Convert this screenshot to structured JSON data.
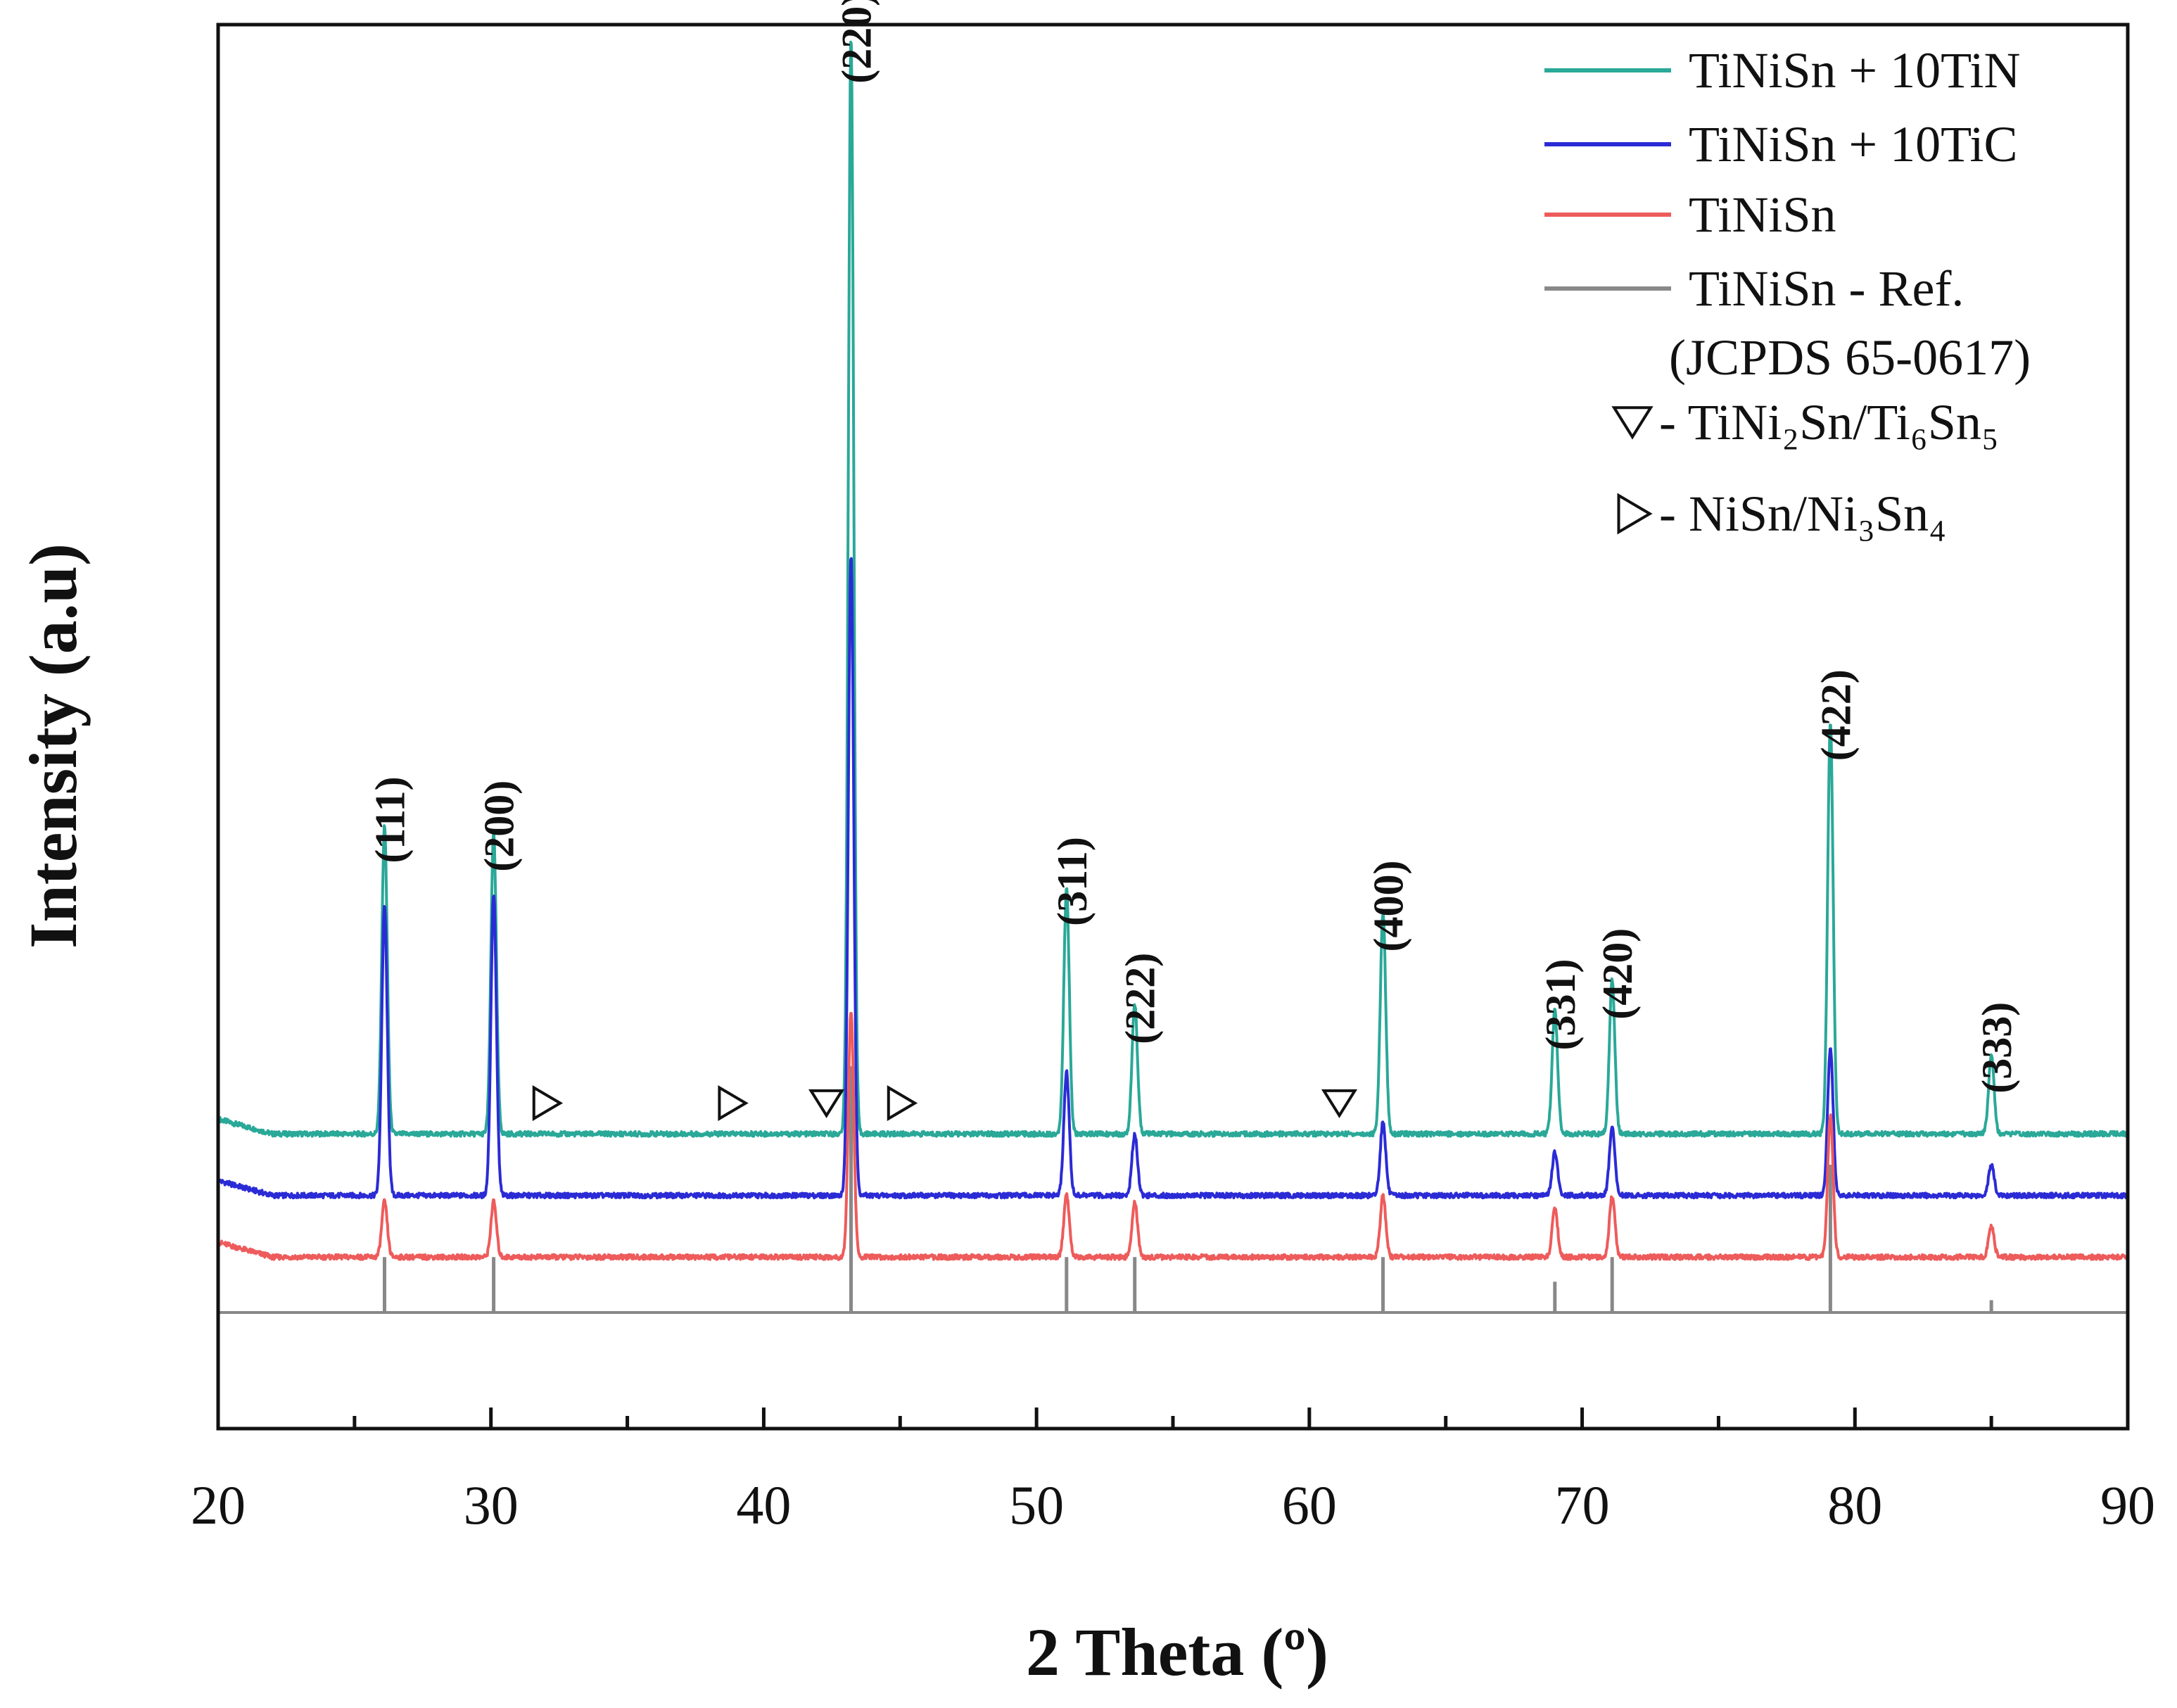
{
  "chart_data": {
    "type": "line",
    "title": "",
    "xlabel": "2 Theta (º)",
    "ylabel": "Intensity (a.u)",
    "xlim": [
      20,
      90
    ],
    "ylim": [
      -0.15,
      1.0
    ],
    "x_ticks": [
      20,
      30,
      40,
      50,
      60,
      70,
      80,
      90
    ],
    "x_tick_labels": [
      "20",
      "30",
      "40",
      "50",
      "60",
      "70",
      "80",
      "90"
    ],
    "y_tick_labels_shown": false,
    "legend_position": "top-right",
    "legend": {
      "entries": [
        "TiNiSn + 10TiN",
        "TiNiSn + 10TiC",
        "TiNiSn",
        "TiNiSn - Ref."
      ],
      "ref_note": "(JCPDS 65-0617)",
      "markers": [
        {
          "symbol": "down-triangle",
          "label": "- TiNi₂Sn/Ti₆Sn₅"
        },
        {
          "symbol": "right-triangle",
          "label": "- NiSn/Ni₃Sn₄"
        }
      ]
    },
    "colors": {
      "TiNiSn + 10TiN": "#2aa898",
      "TiNiSn + 10TiC": "#2b2bd6",
      "TiNiSn": "#ee5b5b",
      "TiNiSn - Ref.": "#888888"
    },
    "series": [
      {
        "name": "TiNiSn + 10TiN",
        "baseline": 0.145,
        "peaks": [
          {
            "x": 26.1,
            "h": 0.25
          },
          {
            "x": 30.1,
            "h": 0.245
          },
          {
            "x": 43.2,
            "h": 0.89
          },
          {
            "x": 51.1,
            "h": 0.2
          },
          {
            "x": 53.6,
            "h": 0.105
          },
          {
            "x": 62.7,
            "h": 0.18
          },
          {
            "x": 69.0,
            "h": 0.1
          },
          {
            "x": 71.1,
            "h": 0.125
          },
          {
            "x": 79.1,
            "h": 0.335
          },
          {
            "x": 85.0,
            "h": 0.065
          }
        ]
      },
      {
        "name": "TiNiSn + 10TiC",
        "baseline": 0.095,
        "peaks": [
          {
            "x": 26.1,
            "h": 0.235
          },
          {
            "x": 30.1,
            "h": 0.245
          },
          {
            "x": 43.2,
            "h": 0.52
          },
          {
            "x": 51.1,
            "h": 0.1
          },
          {
            "x": 53.6,
            "h": 0.05
          },
          {
            "x": 62.7,
            "h": 0.06
          },
          {
            "x": 69.0,
            "h": 0.035
          },
          {
            "x": 71.1,
            "h": 0.055
          },
          {
            "x": 79.1,
            "h": 0.12
          },
          {
            "x": 85.0,
            "h": 0.025
          }
        ]
      },
      {
        "name": "TiNiSn",
        "baseline": 0.045,
        "peaks": [
          {
            "x": 26.1,
            "h": 0.045
          },
          {
            "x": 30.1,
            "h": 0.045
          },
          {
            "x": 43.2,
            "h": 0.2
          },
          {
            "x": 51.1,
            "h": 0.05
          },
          {
            "x": 53.6,
            "h": 0.045
          },
          {
            "x": 62.7,
            "h": 0.05
          },
          {
            "x": 69.0,
            "h": 0.04
          },
          {
            "x": 71.1,
            "h": 0.05
          },
          {
            "x": 79.1,
            "h": 0.115
          },
          {
            "x": 85.0,
            "h": 0.025
          }
        ]
      }
    ],
    "reference": {
      "name": "TiNiSn - Ref.",
      "baseline": 0.0,
      "sticks": [
        {
          "x": 26.1,
          "h": 0.045
        },
        {
          "x": 30.1,
          "h": 0.045
        },
        {
          "x": 43.2,
          "h": 0.2
        },
        {
          "x": 51.1,
          "h": 0.045
        },
        {
          "x": 53.6,
          "h": 0.045
        },
        {
          "x": 62.7,
          "h": 0.045
        },
        {
          "x": 69.0,
          "h": 0.025
        },
        {
          "x": 71.1,
          "h": 0.045
        },
        {
          "x": 79.1,
          "h": 0.12
        },
        {
          "x": 85.0,
          "h": 0.01
        }
      ]
    },
    "peak_labels": [
      {
        "x": 26.1,
        "y": 0.4,
        "text": "(111)"
      },
      {
        "x": 30.1,
        "y": 0.395,
        "text": "(200)"
      },
      {
        "x": 43.2,
        "y": 1.035,
        "text": "(220)"
      },
      {
        "x": 51.1,
        "y": 0.35,
        "text": "(311)"
      },
      {
        "x": 53.6,
        "y": 0.255,
        "text": "(222)"
      },
      {
        "x": 62.7,
        "y": 0.33,
        "text": "(400)"
      },
      {
        "x": 69.0,
        "y": 0.25,
        "text": "(331)"
      },
      {
        "x": 71.1,
        "y": 0.275,
        "text": "(420)"
      },
      {
        "x": 79.1,
        "y": 0.485,
        "text": "(422)"
      },
      {
        "x": 85.0,
        "y": 0.215,
        "text": "(333)"
      }
    ],
    "phase_markers": [
      {
        "symbol": "right-triangle",
        "x": 32.0,
        "y": 0.17
      },
      {
        "symbol": "right-triangle",
        "x": 38.8,
        "y": 0.17
      },
      {
        "symbol": "down-triangle",
        "x": 42.3,
        "y": 0.17
      },
      {
        "symbol": "right-triangle",
        "x": 45.0,
        "y": 0.17
      },
      {
        "symbol": "down-triangle",
        "x": 61.1,
        "y": 0.17
      }
    ]
  }
}
